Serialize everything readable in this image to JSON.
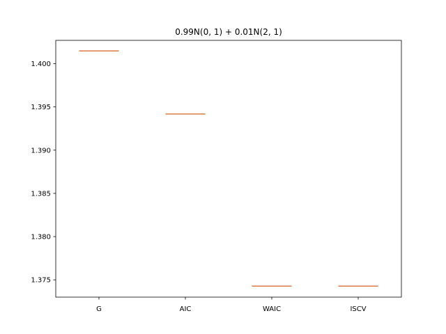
{
  "chart_data": {
    "type": "box",
    "title": "0.99N(0, 1) + 0.01N(2, 1)",
    "xlabel": "",
    "ylabel": "",
    "categories": [
      "G",
      "AIC",
      "WAIC",
      "ISCV"
    ],
    "values": [
      1.40148,
      1.39418,
      1.37427,
      1.37427
    ],
    "ylim": [
      1.373,
      1.4027
    ],
    "yticks": [
      1.375,
      1.38,
      1.385,
      1.39,
      1.395,
      1.4
    ],
    "ytick_labels": [
      "1.375",
      "1.380",
      "1.385",
      "1.390",
      "1.395",
      "1.400"
    ],
    "grid": false,
    "colors": {
      "median": "#dd8452",
      "box": "#000000",
      "axis": "#000000"
    }
  }
}
